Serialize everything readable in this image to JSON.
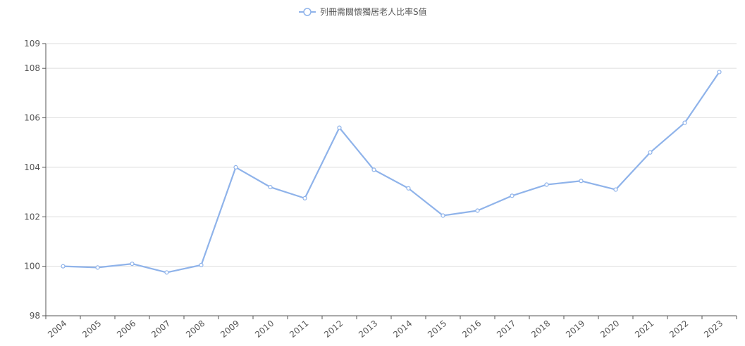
{
  "chart_data": {
    "type": "line",
    "title": "",
    "xlabel": "",
    "ylabel": "",
    "categories": [
      "2004",
      "2005",
      "2006",
      "2007",
      "2008",
      "2009",
      "2010",
      "2011",
      "2012",
      "2013",
      "2014",
      "2015",
      "2016",
      "2017",
      "2018",
      "2019",
      "2020",
      "2021",
      "2022",
      "2023"
    ],
    "series": [
      {
        "name": "列冊需關懷獨居老人比率S值",
        "values": [
          100.0,
          99.95,
          100.1,
          99.75,
          100.05,
          104.0,
          103.2,
          102.75,
          105.6,
          103.9,
          103.15,
          102.05,
          102.25,
          102.85,
          103.3,
          103.45,
          103.1,
          104.6,
          105.8,
          107.85
        ],
        "color": "#8fb3ea"
      }
    ],
    "ylim": [
      98,
      109
    ],
    "yticks": [
      98,
      100,
      102,
      104,
      106,
      108,
      109
    ],
    "grid": true,
    "legend_position": "top-center"
  }
}
